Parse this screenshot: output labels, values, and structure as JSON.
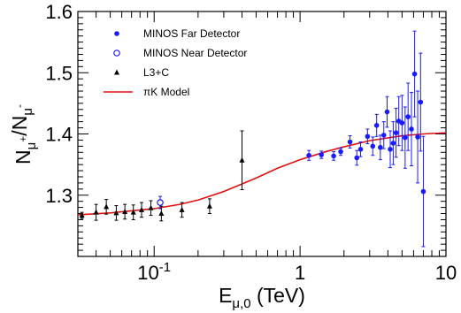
{
  "chart_data": {
    "type": "scatter",
    "xscale": "log",
    "xlim": [
      0.03,
      10
    ],
    "ylim": [
      1.2,
      1.6
    ],
    "xlabel": "E_μ,0 (TeV)",
    "ylabel": "N_μ+/N_μ-",
    "grid": false,
    "legend_position": "top-left",
    "x_ticks": [
      {
        "value": 0.1,
        "label": "10",
        "exp": "-1"
      },
      {
        "value": 1,
        "label": "1",
        "exp": ""
      },
      {
        "value": 10,
        "label": "10",
        "exp": ""
      }
    ],
    "y_ticks": [
      {
        "value": 1.3,
        "label": "1.3"
      },
      {
        "value": 1.4,
        "label": "1.4"
      },
      {
        "value": 1.5,
        "label": "1.5"
      },
      {
        "value": 1.6,
        "label": "1.6"
      }
    ],
    "series": [
      {
        "name": "MINOS Far Detector",
        "marker": "filled-circle",
        "color": "#1a1aff",
        "points": [
          {
            "x": 1.15,
            "y": 1.365,
            "err": 0.008
          },
          {
            "x": 1.4,
            "y": 1.366,
            "err": 0.006
          },
          {
            "x": 1.7,
            "y": 1.364,
            "err": 0.007
          },
          {
            "x": 1.9,
            "y": 1.371,
            "err": 0.006
          },
          {
            "x": 2.2,
            "y": 1.387,
            "err": 0.01
          },
          {
            "x": 2.45,
            "y": 1.361,
            "err": 0.012
          },
          {
            "x": 2.6,
            "y": 1.375,
            "err": 0.012
          },
          {
            "x": 2.9,
            "y": 1.396,
            "err": 0.012
          },
          {
            "x": 3.15,
            "y": 1.38,
            "err": 0.015
          },
          {
            "x": 3.35,
            "y": 1.414,
            "err": 0.018
          },
          {
            "x": 3.55,
            "y": 1.378,
            "err": 0.02
          },
          {
            "x": 3.75,
            "y": 1.398,
            "err": 0.022
          },
          {
            "x": 3.95,
            "y": 1.436,
            "err": 0.025
          },
          {
            "x": 4.15,
            "y": 1.375,
            "err": 0.03
          },
          {
            "x": 4.35,
            "y": 1.385,
            "err": 0.035
          },
          {
            "x": 4.55,
            "y": 1.402,
            "err": 0.04
          },
          {
            "x": 4.75,
            "y": 1.421,
            "err": 0.04
          },
          {
            "x": 5.0,
            "y": 1.418,
            "err": 0.045
          },
          {
            "x": 5.25,
            "y": 1.394,
            "err": 0.05
          },
          {
            "x": 5.5,
            "y": 1.428,
            "err": 0.055
          },
          {
            "x": 5.8,
            "y": 1.408,
            "err": 0.06
          },
          {
            "x": 6.1,
            "y": 1.498,
            "err": 0.07
          },
          {
            "x": 6.4,
            "y": 1.395,
            "err": 0.075
          },
          {
            "x": 6.7,
            "y": 1.452,
            "err": 0.08
          },
          {
            "x": 7.0,
            "y": 1.306,
            "err": 0.09
          }
        ]
      },
      {
        "name": "MINOS Near Detector",
        "marker": "open-circle",
        "color": "#1a1aff",
        "points": [
          {
            "x": 0.11,
            "y": 1.288,
            "err": 0.01
          }
        ]
      },
      {
        "name": "L3+C",
        "marker": "triangle",
        "color": "#000000",
        "points": [
          {
            "x": 0.032,
            "y": 1.267,
            "err": 0.005
          },
          {
            "x": 0.04,
            "y": 1.272,
            "err": 0.013
          },
          {
            "x": 0.047,
            "y": 1.281,
            "err": 0.012
          },
          {
            "x": 0.055,
            "y": 1.271,
            "err": 0.012
          },
          {
            "x": 0.063,
            "y": 1.273,
            "err": 0.012
          },
          {
            "x": 0.072,
            "y": 1.272,
            "err": 0.012
          },
          {
            "x": 0.082,
            "y": 1.276,
            "err": 0.012
          },
          {
            "x": 0.095,
            "y": 1.279,
            "err": 0.012
          },
          {
            "x": 0.112,
            "y": 1.27,
            "err": 0.012
          },
          {
            "x": 0.155,
            "y": 1.276,
            "err": 0.012
          },
          {
            "x": 0.24,
            "y": 1.282,
            "err": 0.012
          },
          {
            "x": 0.4,
            "y": 1.357,
            "err": 0.048
          }
        ]
      },
      {
        "name": "πK Model",
        "marker": "line",
        "color": "#e01010",
        "points": [
          {
            "x": 0.03,
            "y": 1.268
          },
          {
            "x": 0.05,
            "y": 1.271
          },
          {
            "x": 0.1,
            "y": 1.278
          },
          {
            "x": 0.15,
            "y": 1.285
          },
          {
            "x": 0.2,
            "y": 1.292
          },
          {
            "x": 0.3,
            "y": 1.306
          },
          {
            "x": 0.5,
            "y": 1.328
          },
          {
            "x": 0.7,
            "y": 1.344
          },
          {
            "x": 1.0,
            "y": 1.358
          },
          {
            "x": 1.5,
            "y": 1.371
          },
          {
            "x": 2.0,
            "y": 1.379
          },
          {
            "x": 3.0,
            "y": 1.389
          },
          {
            "x": 5.0,
            "y": 1.397
          },
          {
            "x": 7.0,
            "y": 1.4
          },
          {
            "x": 10.0,
            "y": 1.402
          }
        ]
      }
    ]
  }
}
